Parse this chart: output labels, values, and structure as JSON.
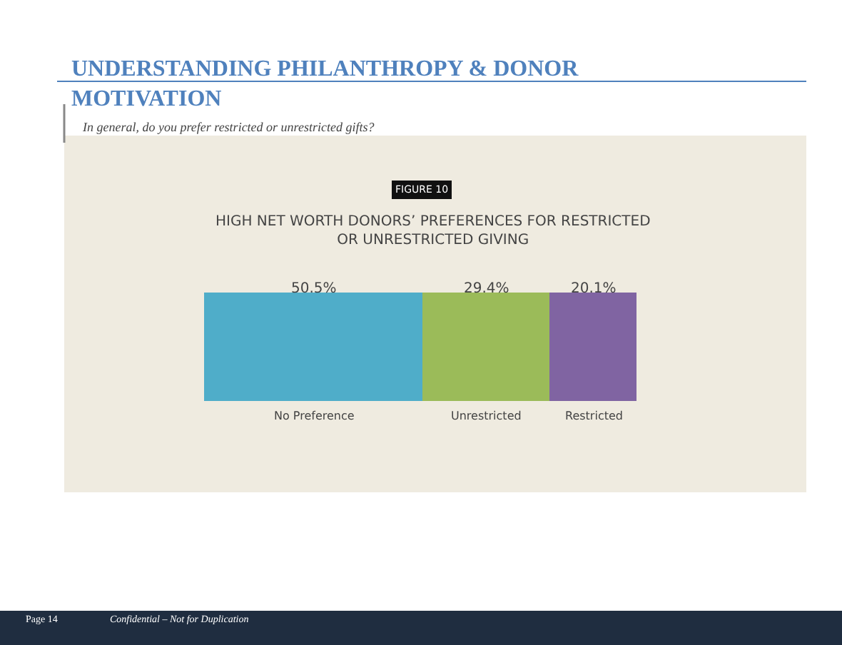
{
  "chart_data": {
    "type": "bar",
    "orientation": "horizontal",
    "stacked": true,
    "title": "UNDERSTANDING PHILANTHROPY & DONOR MOTIVATION",
    "subtitle": "In general, do you prefer restricted or unrestricted gifts?",
    "annotations": [
      "FIGURE 10",
      "HIGH NET WORTH DONORS’ PREFERENCES FOR RESTRICTED OR UNRESTRICTED GIVING",
      "Page 14",
      "Confidential – Not for Duplication"
    ],
    "categories": [
      null
    ],
    "series": [
      {
        "name": "No Preference",
        "color": "#4fadc9",
        "values": [
          50.5
        ],
        "value_labels": [
          "50.5%"
        ]
      },
      {
        "name": "Unrestricted",
        "color": "#9bbb59",
        "values": [
          29.4
        ],
        "value_labels": [
          "29.4%"
        ]
      },
      {
        "name": "Restricted",
        "color": "#8064a2",
        "values": [
          20.1
        ],
        "value_labels": [
          "20.1%"
        ]
      }
    ],
    "tick_labels": false,
    "legend": false
  }
}
